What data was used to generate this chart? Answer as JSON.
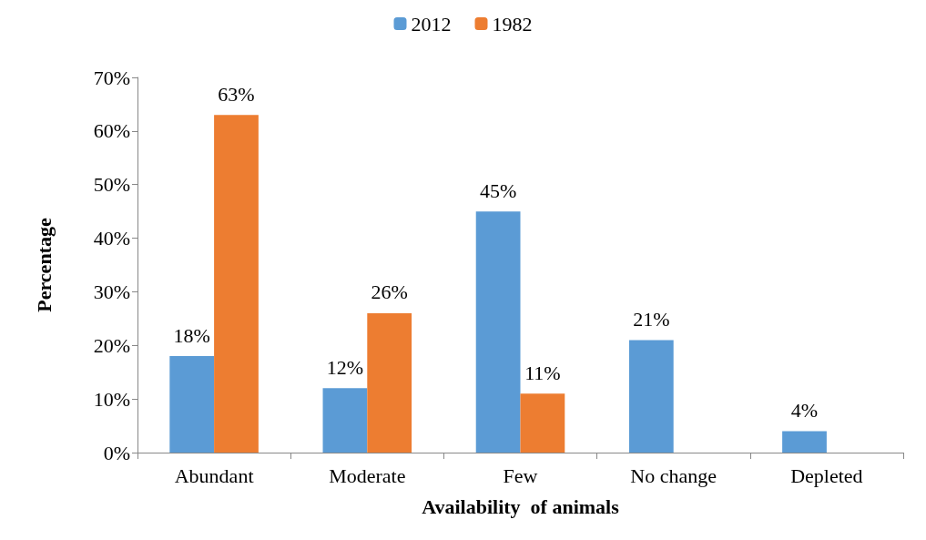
{
  "chart_data": {
    "type": "bar",
    "xlabel": "Availability  of animals",
    "ylabel": "Percentage",
    "categories": [
      "Abundant",
      "Moderate",
      "Few",
      "No change",
      "Depleted"
    ],
    "series": [
      {
        "name": "2012",
        "color": "#5b9bd5",
        "values": [
          18,
          12,
          45,
          21,
          4
        ],
        "value_labels": [
          "18%",
          "12%",
          "45%",
          "21%",
          "4%"
        ]
      },
      {
        "name": "1982",
        "color": "#ed7d31",
        "values": [
          63,
          26,
          11,
          null,
          null
        ],
        "value_labels": [
          "63%",
          "26%",
          "11%",
          null,
          null
        ]
      }
    ],
    "ylim": [
      0,
      70
    ],
    "yticks": [
      {
        "value": 0,
        "label": "0%"
      },
      {
        "value": 10,
        "label": "10%"
      },
      {
        "value": 20,
        "label": "20%"
      },
      {
        "value": 30,
        "label": "30%"
      },
      {
        "value": 40,
        "label": "40%"
      },
      {
        "value": 50,
        "label": "50%"
      },
      {
        "value": 60,
        "label": "60%"
      },
      {
        "value": 70,
        "label": "70%"
      }
    ],
    "grid": false,
    "legend": "top"
  }
}
